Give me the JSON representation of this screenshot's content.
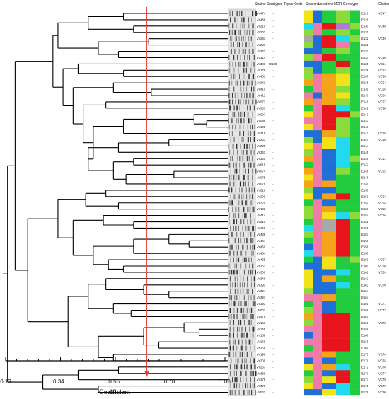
{
  "headers": [
    "Strains",
    "Serotypes",
    "Types",
    "Kinds",
    "Seasons",
    "Locations",
    "MDR Genotype",
    "Cluster"
  ],
  "axis": {
    "title": "Coefficient",
    "ticks": [
      "0.13",
      "0.34",
      "0.56",
      "0.78",
      "1.00"
    ],
    "cutoff": 0.69
  },
  "rows": [
    {
      "strain": "Vc474",
      "sero": "-",
      "geno": "E128",
      "cluster": "VC47"
    },
    {
      "strain": "Vc486",
      "sero": "-",
      "geno": "E129",
      "cluster": ""
    },
    {
      "strain": "Vc210",
      "sero": "-",
      "geno": "E130",
      "cluster": "VC48"
    },
    {
      "strain": "Vc302",
      "sero": "-",
      "geno": "E131",
      "cluster": ""
    },
    {
      "strain": "Vc283",
      "sero": "-",
      "geno": "E132",
      "cluster": "VC49"
    },
    {
      "strain": "Vc287",
      "sero": "-",
      "geno": "E132",
      "cluster": ""
    },
    {
      "strain": "Vc321",
      "sero": "-",
      "geno": "E133",
      "cluster": ""
    },
    {
      "strain": "Vc314",
      "sero": "-",
      "geno": "E134",
      "cluster": "VC50"
    },
    {
      "strain": "Vc381",
      "sero": "O139",
      "geno": "E135",
      "cluster": "VC51"
    },
    {
      "strain": "Vc178",
      "sero": "-",
      "geno": "E136",
      "cluster": "VC52"
    },
    {
      "strain": "Vc431",
      "sero": "-",
      "geno": "E137",
      "cluster": "VC53"
    },
    {
      "strain": "Vc241",
      "sero": "-",
      "geno": "E138",
      "cluster": "VC54"
    },
    {
      "strain": "Vc410",
      "sero": "-",
      "geno": "E139",
      "cluster": "VC55"
    },
    {
      "strain": "Vc412",
      "sero": "-",
      "geno": "E140",
      "cluster": "VC56"
    },
    {
      "strain": "Vc077",
      "sero": "-",
      "geno": "E141",
      "cluster": "VC57"
    },
    {
      "strain": "Vc083",
      "sero": "-",
      "geno": "E142",
      "cluster": "VC58"
    },
    {
      "strain": "Vc097",
      "sero": "-",
      "geno": "E143",
      "cluster": ""
    },
    {
      "strain": "Vc099",
      "sero": "-",
      "geno": "E143",
      "cluster": ""
    },
    {
      "strain": "Vc105",
      "sero": "-",
      "geno": "E143",
      "cluster": ""
    },
    {
      "strain": "Vc318",
      "sero": "-",
      "geno": "E143",
      "cluster": "VC59"
    },
    {
      "strain": "Vc233",
      "sero": "-",
      "geno": "E144",
      "cluster": "VC60"
    },
    {
      "strain": "Vc235",
      "sero": "-",
      "geno": "E144",
      "cluster": ""
    },
    {
      "strain": "Vc341",
      "sero": "-",
      "geno": "E145",
      "cluster": ""
    },
    {
      "strain": "Vc320",
      "sero": "-",
      "geno": "E146",
      "cluster": "VC61"
    },
    {
      "strain": "Vc611",
      "sero": "-",
      "geno": "E147",
      "cluster": ""
    },
    {
      "strain": "Vc074",
      "sero": "-",
      "geno": "E148",
      "cluster": "VC62"
    },
    {
      "strain": "Vc075",
      "sero": "-",
      "geno": "E148",
      "cluster": ""
    },
    {
      "strain": "Vc076",
      "sero": "-",
      "geno": "E149",
      "cluster": ""
    },
    {
      "strain": "Vc516",
      "sero": "-",
      "geno": "E150",
      "cluster": ""
    },
    {
      "strain": "Vc209",
      "sero": "-",
      "geno": "E151",
      "cluster": "VC63"
    },
    {
      "strain": "Vc229",
      "sero": "-",
      "geno": "E152",
      "cluster": "VC64"
    },
    {
      "strain": "Vc102",
      "sero": "-",
      "geno": "E153",
      "cluster": "VC65"
    },
    {
      "strain": "Vc414",
      "sero": "-",
      "geno": "E154",
      "cluster": "VC66"
    },
    {
      "strain": "Vc510",
      "sero": "-",
      "geno": "E155",
      "cluster": ""
    },
    {
      "strain": "Vc458",
      "sero": "-",
      "geno": "E156",
      "cluster": ""
    },
    {
      "strain": "Vc436",
      "sero": "-",
      "geno": "E157",
      "cluster": ""
    },
    {
      "strain": "Vc444",
      "sero": "-",
      "geno": "E158",
      "cluster": ""
    },
    {
      "strain": "Vc450",
      "sero": "-",
      "geno": "E158",
      "cluster": ""
    },
    {
      "strain": "Vc454",
      "sero": "-",
      "geno": "E158",
      "cluster": ""
    },
    {
      "strain": "Vc435",
      "sero": "-",
      "geno": "E159",
      "cluster": "VC67"
    },
    {
      "strain": "Vc361",
      "sero": "-",
      "geno": "E160",
      "cluster": "VC68"
    },
    {
      "strain": "Vc300",
      "sero": "-",
      "geno": "E161",
      "cluster": "VC69"
    },
    {
      "strain": "Vc346",
      "sero": "-",
      "geno": "E162",
      "cluster": ""
    },
    {
      "strain": "Vc391",
      "sero": "-",
      "geno": "E163",
      "cluster": "VC70"
    },
    {
      "strain": "Vc394",
      "sero": "-",
      "geno": "E164",
      "cluster": ""
    },
    {
      "strain": "Vc397",
      "sero": "-",
      "geno": "E164",
      "cluster": ""
    },
    {
      "strain": "Vc393",
      "sero": "-",
      "geno": "E165",
      "cluster": "VC71"
    },
    {
      "strain": "Vc007",
      "sero": "-",
      "geno": "E166",
      "cluster": "VC72"
    },
    {
      "strain": "Vc476",
      "sero": "-",
      "geno": "E167",
      "cluster": ""
    },
    {
      "strain": "Vc161",
      "sero": "-",
      "geno": "E168",
      "cluster": "VC73"
    },
    {
      "strain": "Vc165",
      "sero": "-",
      "geno": "E168",
      "cluster": ""
    },
    {
      "strain": "Vc168",
      "sero": "-",
      "geno": "E168",
      "cluster": ""
    },
    {
      "strain": "Vc169",
      "sero": "-",
      "geno": "E168",
      "cluster": ""
    },
    {
      "strain": "Vc356",
      "sero": "-",
      "geno": "E169",
      "cluster": ""
    },
    {
      "strain": "Vc199",
      "sero": "-",
      "geno": "E170",
      "cluster": "VC74"
    },
    {
      "strain": "Vc200",
      "sero": "-",
      "geno": "E171",
      "cluster": "VC75"
    },
    {
      "strain": "Vc267",
      "sero": "-",
      "geno": "E172",
      "cluster": "VC76"
    },
    {
      "strain": "Vc389",
      "sero": "-",
      "geno": "E173",
      "cluster": "VC77"
    },
    {
      "strain": "Vc175",
      "sero": "-",
      "geno": "E174",
      "cluster": "VC78"
    },
    {
      "strain": "Vc378",
      "sero": "-",
      "geno": "E175",
      "cluster": "VC79"
    },
    {
      "strain": "Vc501",
      "sero": "-",
      "geno": "E176",
      "cluster": "VC80"
    }
  ],
  "colors": {
    "cutoff_line": "#e8413a",
    "blue": "#1f6fd6",
    "green": "#22cc3f",
    "yellow": "#f2e21a",
    "orange": "#f5a319",
    "red": "#e8141b",
    "pink": "#f07aa8",
    "cyan": "#22d9ef",
    "lime": "#8ddb3a",
    "gray": "#a8a8a8",
    "purple": "#b07ad8"
  }
}
